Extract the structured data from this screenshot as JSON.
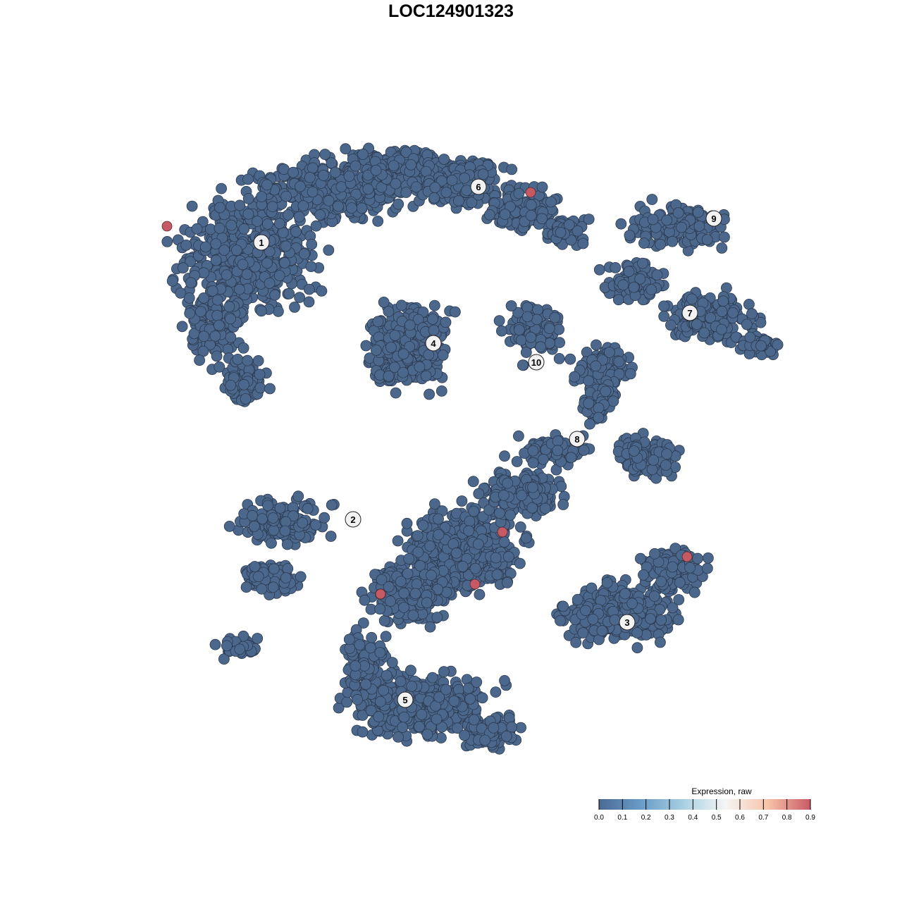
{
  "chart_data": {
    "type": "scatter",
    "title": "LOC124901323",
    "xlabel": "",
    "ylabel": "",
    "grid": false,
    "cluster_labels": [
      "1",
      "2",
      "3",
      "4",
      "5",
      "6",
      "7",
      "8",
      "9",
      "10"
    ],
    "highlighted_cells": {
      "count": 6,
      "expression": 0.9
    },
    "baseline_expression": 0.0,
    "colorbar": {
      "title": "Expression, raw",
      "ticks": [
        "0.0",
        "0.1",
        "0.2",
        "0.3",
        "0.4",
        "0.5",
        "0.6",
        "0.7",
        "0.8",
        "0.9"
      ],
      "range": [
        0.0,
        0.9
      ],
      "placement": "bottom-right",
      "colors": [
        "#4a6a94",
        "#6a9cc8",
        "#a9d0e2",
        "#f5f5f5",
        "#f7c3a9",
        "#c85a66"
      ]
    },
    "point_color_low": "#4c678c",
    "point_color_high": "#c55a64"
  }
}
